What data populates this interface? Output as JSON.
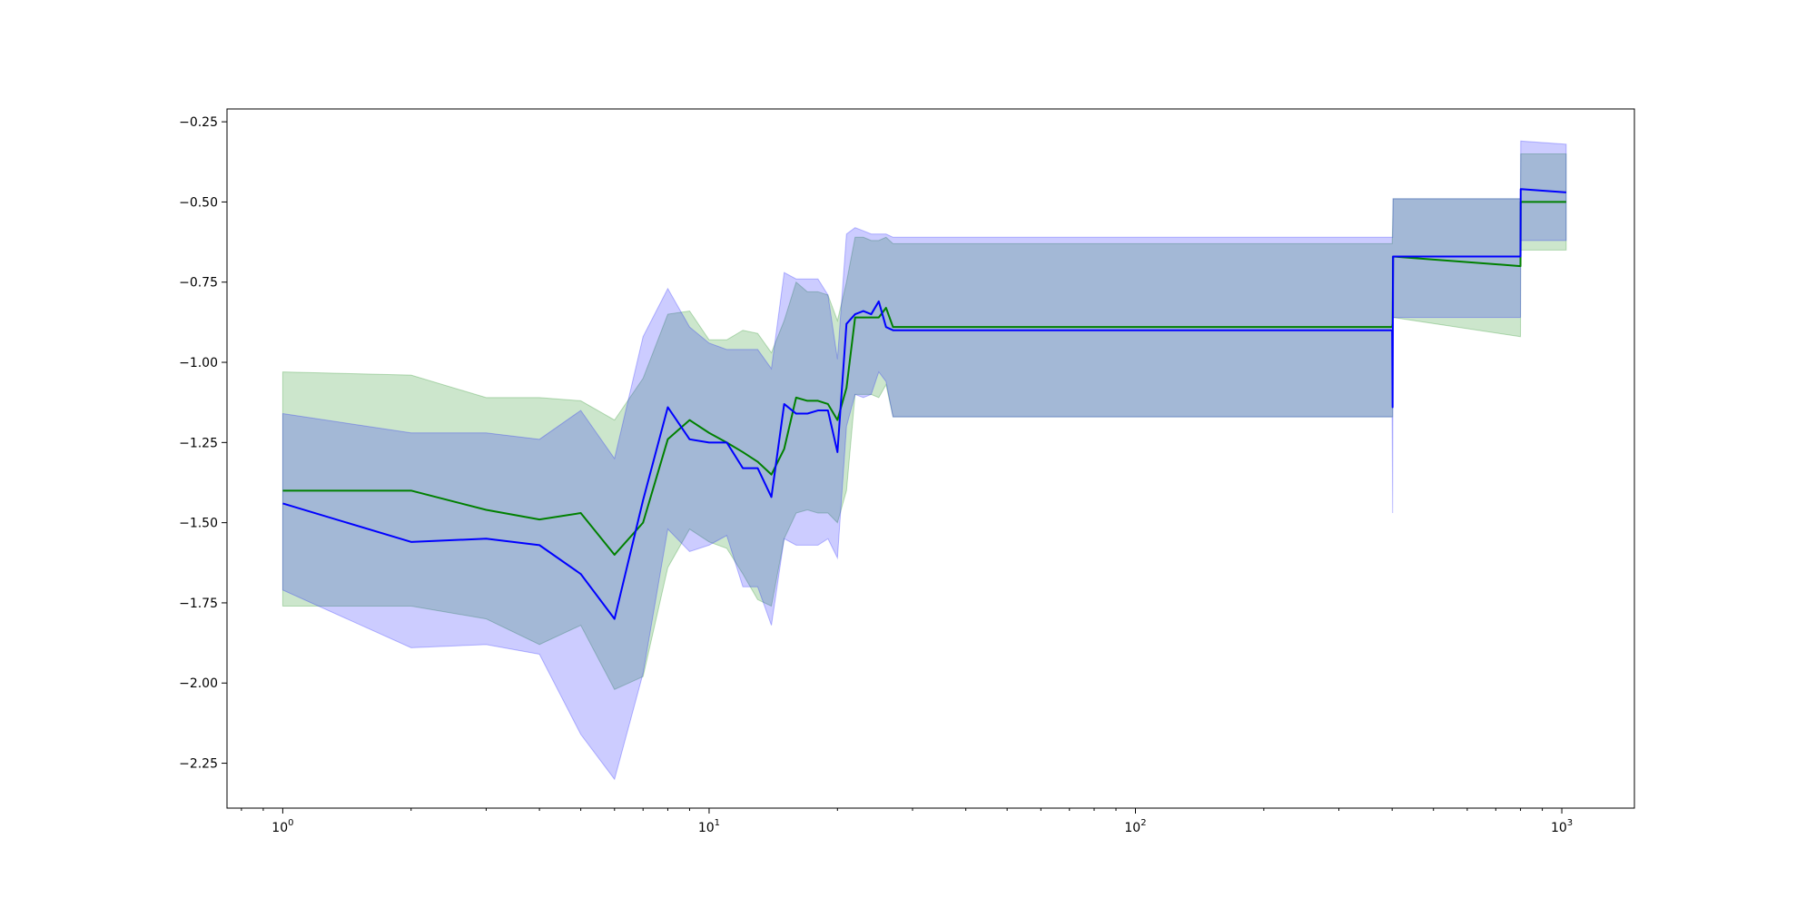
{
  "chart_data": {
    "type": "line",
    "title": "",
    "xlabel": "",
    "ylabel": "",
    "xscale": "log",
    "xlim": [
      0.74,
      1480
    ],
    "ylim": [
      -2.39,
      -0.21
    ],
    "grid": false,
    "legend": "none",
    "x_major_ticks": [
      {
        "value": 1,
        "base": "10",
        "exp": "0"
      },
      {
        "value": 10,
        "base": "10",
        "exp": "1"
      },
      {
        "value": 100,
        "base": "10",
        "exp": "2"
      },
      {
        "value": 1000,
        "base": "10",
        "exp": "3"
      }
    ],
    "x_minor_ticks": [
      0.8,
      0.9,
      2,
      3,
      4,
      5,
      6,
      7,
      8,
      9,
      20,
      30,
      40,
      50,
      60,
      70,
      80,
      90,
      200,
      300,
      400,
      500,
      600,
      700,
      800,
      900
    ],
    "y_ticks": [
      {
        "value": -2.25,
        "label": "−2.25"
      },
      {
        "value": -2.0,
        "label": "−2.00"
      },
      {
        "value": -1.75,
        "label": "−1.75"
      },
      {
        "value": -1.5,
        "label": "−1.50"
      },
      {
        "value": -1.25,
        "label": "−1.25"
      },
      {
        "value": -1.0,
        "label": "−1.00"
      },
      {
        "value": -0.75,
        "label": "−0.75"
      },
      {
        "value": -0.5,
        "label": "−0.50"
      },
      {
        "value": -0.25,
        "label": "−0.25"
      }
    ],
    "series": [
      {
        "color": "#008000",
        "band_color": "#008000",
        "band_opacity": 0.2,
        "x": [
          1,
          2,
          3,
          4,
          5,
          6,
          7,
          8,
          9,
          10,
          11,
          12,
          13,
          14,
          15,
          16,
          17,
          18,
          19,
          20,
          21,
          22,
          23,
          24,
          25,
          26,
          27,
          400,
          401,
          402,
          800,
          801,
          1024
        ],
        "y": [
          -1.4,
          -1.4,
          -1.46,
          -1.49,
          -1.47,
          -1.6,
          -1.5,
          -1.24,
          -1.18,
          -1.22,
          -1.25,
          -1.28,
          -1.31,
          -1.35,
          -1.27,
          -1.11,
          -1.12,
          -1.12,
          -1.13,
          -1.18,
          -1.08,
          -0.86,
          -0.86,
          -0.86,
          -0.86,
          -0.83,
          -0.89,
          -0.89,
          -0.88,
          -0.67,
          -0.7,
          -0.5,
          -0.5
        ],
        "lower": [
          -1.76,
          -1.76,
          -1.8,
          -1.88,
          -1.82,
          -2.02,
          -1.98,
          -1.64,
          -1.52,
          -1.56,
          -1.58,
          -1.66,
          -1.74,
          -1.76,
          -1.55,
          -1.47,
          -1.46,
          -1.47,
          -1.47,
          -1.5,
          -1.4,
          -1.1,
          -1.1,
          -1.1,
          -1.11,
          -1.07,
          -1.17,
          -1.17,
          -1.17,
          -0.86,
          -0.92,
          -0.65,
          -0.65
        ],
        "upper": [
          -1.03,
          -1.04,
          -1.11,
          -1.11,
          -1.12,
          -1.18,
          -1.05,
          -0.85,
          -0.84,
          -0.93,
          -0.93,
          -0.9,
          -0.91,
          -0.97,
          -0.87,
          -0.75,
          -0.78,
          -0.78,
          -0.79,
          -0.87,
          -0.75,
          -0.61,
          -0.61,
          -0.62,
          -0.62,
          -0.61,
          -0.63,
          -0.63,
          -0.57,
          -0.49,
          -0.49,
          -0.35,
          -0.35
        ]
      },
      {
        "color": "#0000ff",
        "band_color": "#0000ff",
        "band_opacity": 0.2,
        "x": [
          1,
          2,
          3,
          4,
          5,
          6,
          7,
          8,
          9,
          10,
          11,
          12,
          13,
          14,
          15,
          16,
          17,
          18,
          19,
          20,
          21,
          22,
          23,
          24,
          25,
          26,
          27,
          400,
          401,
          402,
          800,
          801,
          1024
        ],
        "y": [
          -1.44,
          -1.56,
          -1.55,
          -1.57,
          -1.66,
          -1.8,
          -1.43,
          -1.14,
          -1.24,
          -1.25,
          -1.25,
          -1.33,
          -1.33,
          -1.42,
          -1.13,
          -1.16,
          -1.16,
          -1.15,
          -1.15,
          -1.28,
          -0.88,
          -0.85,
          -0.84,
          -0.85,
          -0.81,
          -0.89,
          -0.9,
          -0.9,
          -1.14,
          -0.67,
          -0.67,
          -0.46,
          -0.47
        ],
        "lower": [
          -1.71,
          -1.89,
          -1.88,
          -1.91,
          -2.16,
          -2.3,
          -1.97,
          -1.52,
          -1.59,
          -1.57,
          -1.54,
          -1.7,
          -1.7,
          -1.82,
          -1.55,
          -1.57,
          -1.57,
          -1.57,
          -1.55,
          -1.61,
          -1.2,
          -1.1,
          -1.11,
          -1.1,
          -1.03,
          -1.06,
          -1.17,
          -1.17,
          -1.47,
          -0.86,
          -0.86,
          -0.62,
          -0.62
        ],
        "upper": [
          -1.16,
          -1.22,
          -1.22,
          -1.24,
          -1.15,
          -1.3,
          -0.92,
          -0.77,
          -0.89,
          -0.94,
          -0.96,
          -0.96,
          -0.96,
          -1.02,
          -0.72,
          -0.74,
          -0.74,
          -0.74,
          -0.79,
          -0.99,
          -0.6,
          -0.58,
          -0.59,
          -0.6,
          -0.6,
          -0.6,
          -0.61,
          -0.61,
          -0.61,
          -0.49,
          -0.49,
          -0.31,
          -0.32
        ]
      }
    ]
  }
}
